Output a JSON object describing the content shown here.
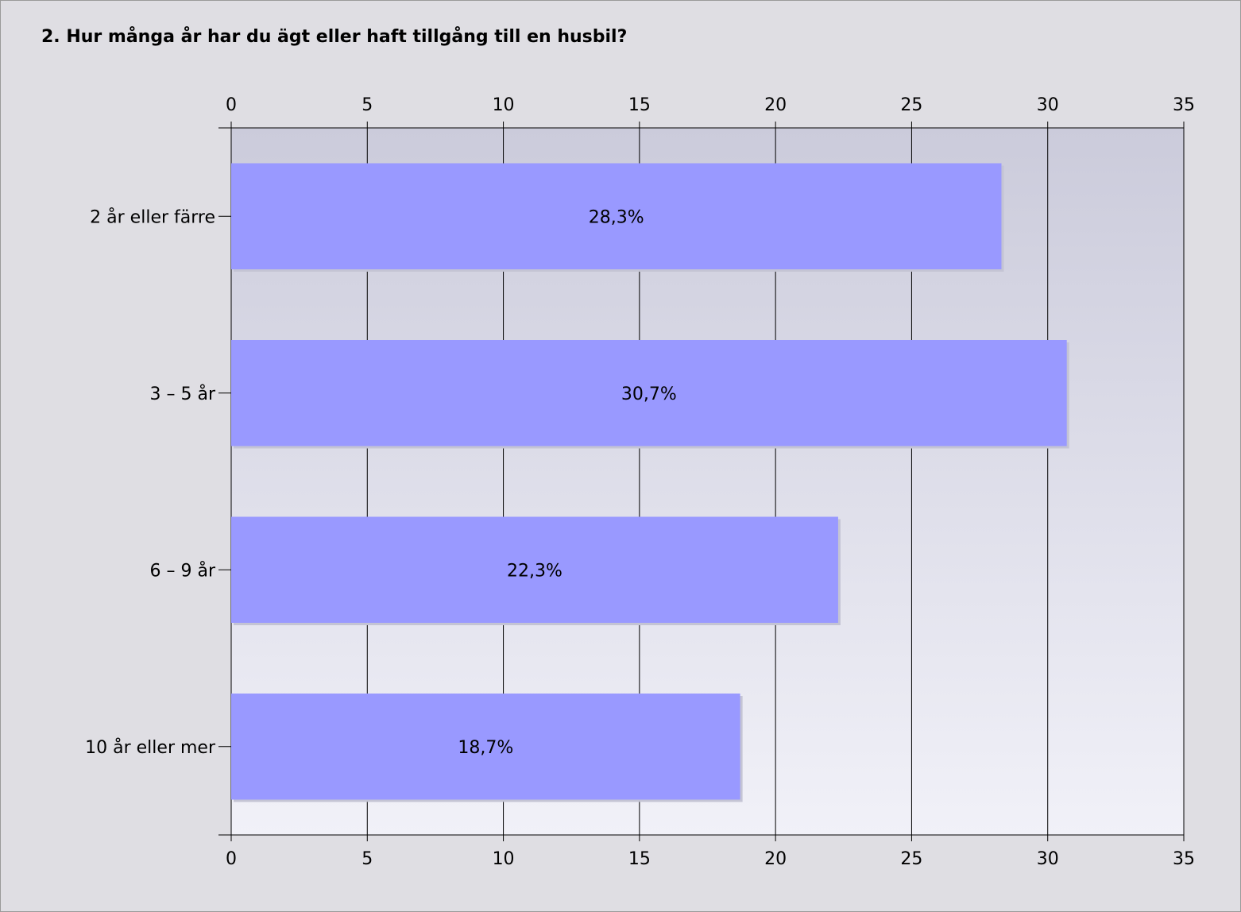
{
  "chart_data": {
    "type": "bar",
    "orientation": "horizontal",
    "title": "2. Hur många år har du ägt eller haft tillgång till en husbil?",
    "categories": [
      "2 år eller färre",
      "3 – 5 år",
      "6 – 9 år",
      "10 år eller mer"
    ],
    "values": [
      28.3,
      30.7,
      22.3,
      18.7
    ],
    "data_labels": [
      "28,3%",
      "30,7%",
      "22,3%",
      "18,7%"
    ],
    "xlim": [
      0,
      35
    ],
    "xticks": [
      0,
      5,
      10,
      15,
      20,
      25,
      30,
      35
    ],
    "grid": true,
    "bar_color": "#9999ff",
    "plot_gradient_top": "#cbcbdb",
    "plot_gradient_bottom": "#f1f1f8"
  }
}
